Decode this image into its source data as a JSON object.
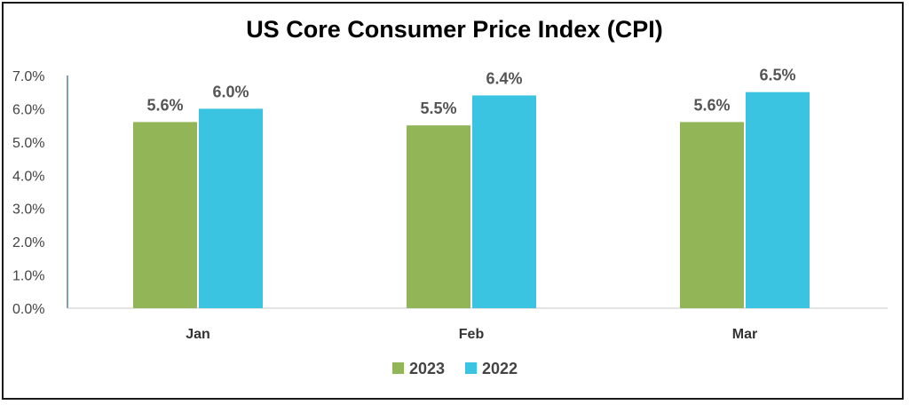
{
  "chart_data": {
    "type": "bar",
    "title": "US Core Consumer Price Index (CPI)",
    "categories": [
      "Jan",
      "Feb",
      "Mar"
    ],
    "series": [
      {
        "name": "2023",
        "values": [
          5.6,
          5.5,
          5.6
        ],
        "labels": [
          "5.6%",
          "5.5%",
          "5.6%"
        ],
        "color": "#92b558"
      },
      {
        "name": "2022",
        "values": [
          6.0,
          6.4,
          6.5
        ],
        "labels": [
          "6.0%",
          "6.4%",
          "6.5%"
        ],
        "color": "#3bc3e2"
      }
    ],
    "ylim": [
      0,
      7
    ],
    "yticks": [
      0,
      1,
      2,
      3,
      4,
      5,
      6,
      7
    ],
    "ytick_labels": [
      "0.0%",
      "1.0%",
      "2.0%",
      "3.0%",
      "4.0%",
      "5.0%",
      "6.0%",
      "7.0%"
    ],
    "grid": false,
    "legend_position": "bottom"
  }
}
